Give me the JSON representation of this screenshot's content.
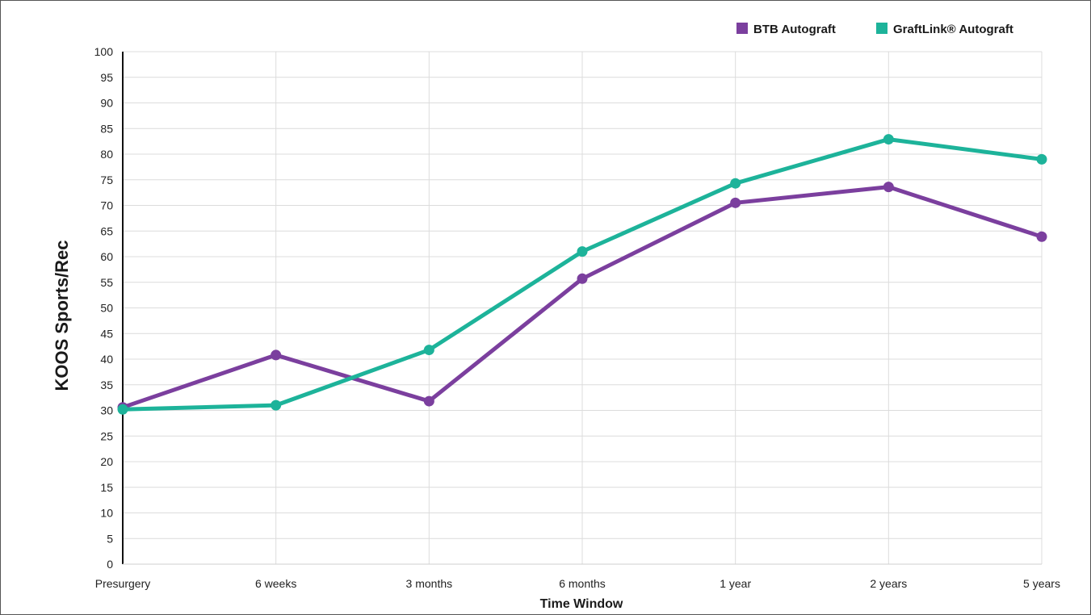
{
  "chart_data": {
    "type": "line",
    "xlabel": "Time Window",
    "ylabel": "KOOS Sports/Rec",
    "categories": [
      "Presurgery",
      "6 weeks",
      "3 months",
      "6 months",
      "1 year",
      "2 years",
      "5 years"
    ],
    "ylim": [
      0,
      100
    ],
    "yticks": [
      0,
      5,
      10,
      15,
      20,
      25,
      30,
      35,
      40,
      45,
      50,
      55,
      60,
      65,
      70,
      75,
      80,
      85,
      90,
      95,
      100
    ],
    "grid": true,
    "legend_position": "top-right",
    "series": [
      {
        "name": "BTB Autograft",
        "color": "#7b3f9e",
        "values": [
          30.6,
          40.8,
          31.8,
          55.7,
          70.5,
          73.6,
          63.9
        ]
      },
      {
        "name": "GraftLink® Autograft",
        "color": "#1db39a",
        "values": [
          30.2,
          31.0,
          41.8,
          61.0,
          74.3,
          82.9,
          79.0
        ]
      }
    ]
  }
}
